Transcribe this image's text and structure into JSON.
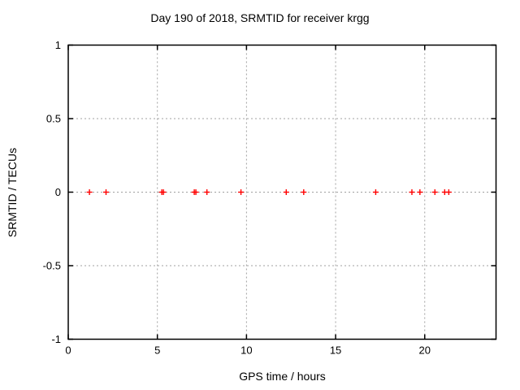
{
  "chart_data": {
    "type": "scatter",
    "title": "Day 190 of 2018, SRMTID for receiver krgg",
    "xlabel": "GPS time / hours",
    "ylabel": "SRMTID / TECUs",
    "xlim": [
      0,
      24
    ],
    "ylim": [
      -1,
      1
    ],
    "xticks": [
      {
        "v": 0,
        "label": "0"
      },
      {
        "v": 5,
        "label": "5"
      },
      {
        "v": 10,
        "label": "10"
      },
      {
        "v": 15,
        "label": "15"
      },
      {
        "v": 20,
        "label": "20"
      }
    ],
    "yticks": [
      {
        "v": -1,
        "label": "-1"
      },
      {
        "v": -0.5,
        "label": "-0.5"
      },
      {
        "v": 0,
        "label": "0"
      },
      {
        "v": 0.5,
        "label": "0.5"
      },
      {
        "v": 1,
        "label": "1"
      }
    ],
    "grid_x": [
      5,
      10,
      15,
      20
    ],
    "grid_y": [
      -0.5,
      0,
      0.5
    ],
    "grid_on": true,
    "legend": "none",
    "marker": "plus",
    "marker_color": "#ff0000",
    "border_color": "#000000",
    "grid_color": "#a0a0a0",
    "series": [
      {
        "name": "SRMTID",
        "points": [
          {
            "x": 1.19,
            "y": 0.0
          },
          {
            "x": 2.12,
            "y": 0.0
          },
          {
            "x": 5.25,
            "y": 0.0
          },
          {
            "x": 5.34,
            "y": 0.0
          },
          {
            "x": 7.07,
            "y": 0.0
          },
          {
            "x": 7.16,
            "y": 0.0
          },
          {
            "x": 7.78,
            "y": 0.0
          },
          {
            "x": 9.69,
            "y": 0.0
          },
          {
            "x": 12.23,
            "y": 0.0
          },
          {
            "x": 13.21,
            "y": 0.0
          },
          {
            "x": 17.25,
            "y": 0.0
          },
          {
            "x": 19.28,
            "y": 0.0
          },
          {
            "x": 19.73,
            "y": 0.0
          },
          {
            "x": 20.57,
            "y": 0.0
          },
          {
            "x": 21.12,
            "y": 0.0
          },
          {
            "x": 21.35,
            "y": 0.0
          }
        ]
      }
    ]
  }
}
